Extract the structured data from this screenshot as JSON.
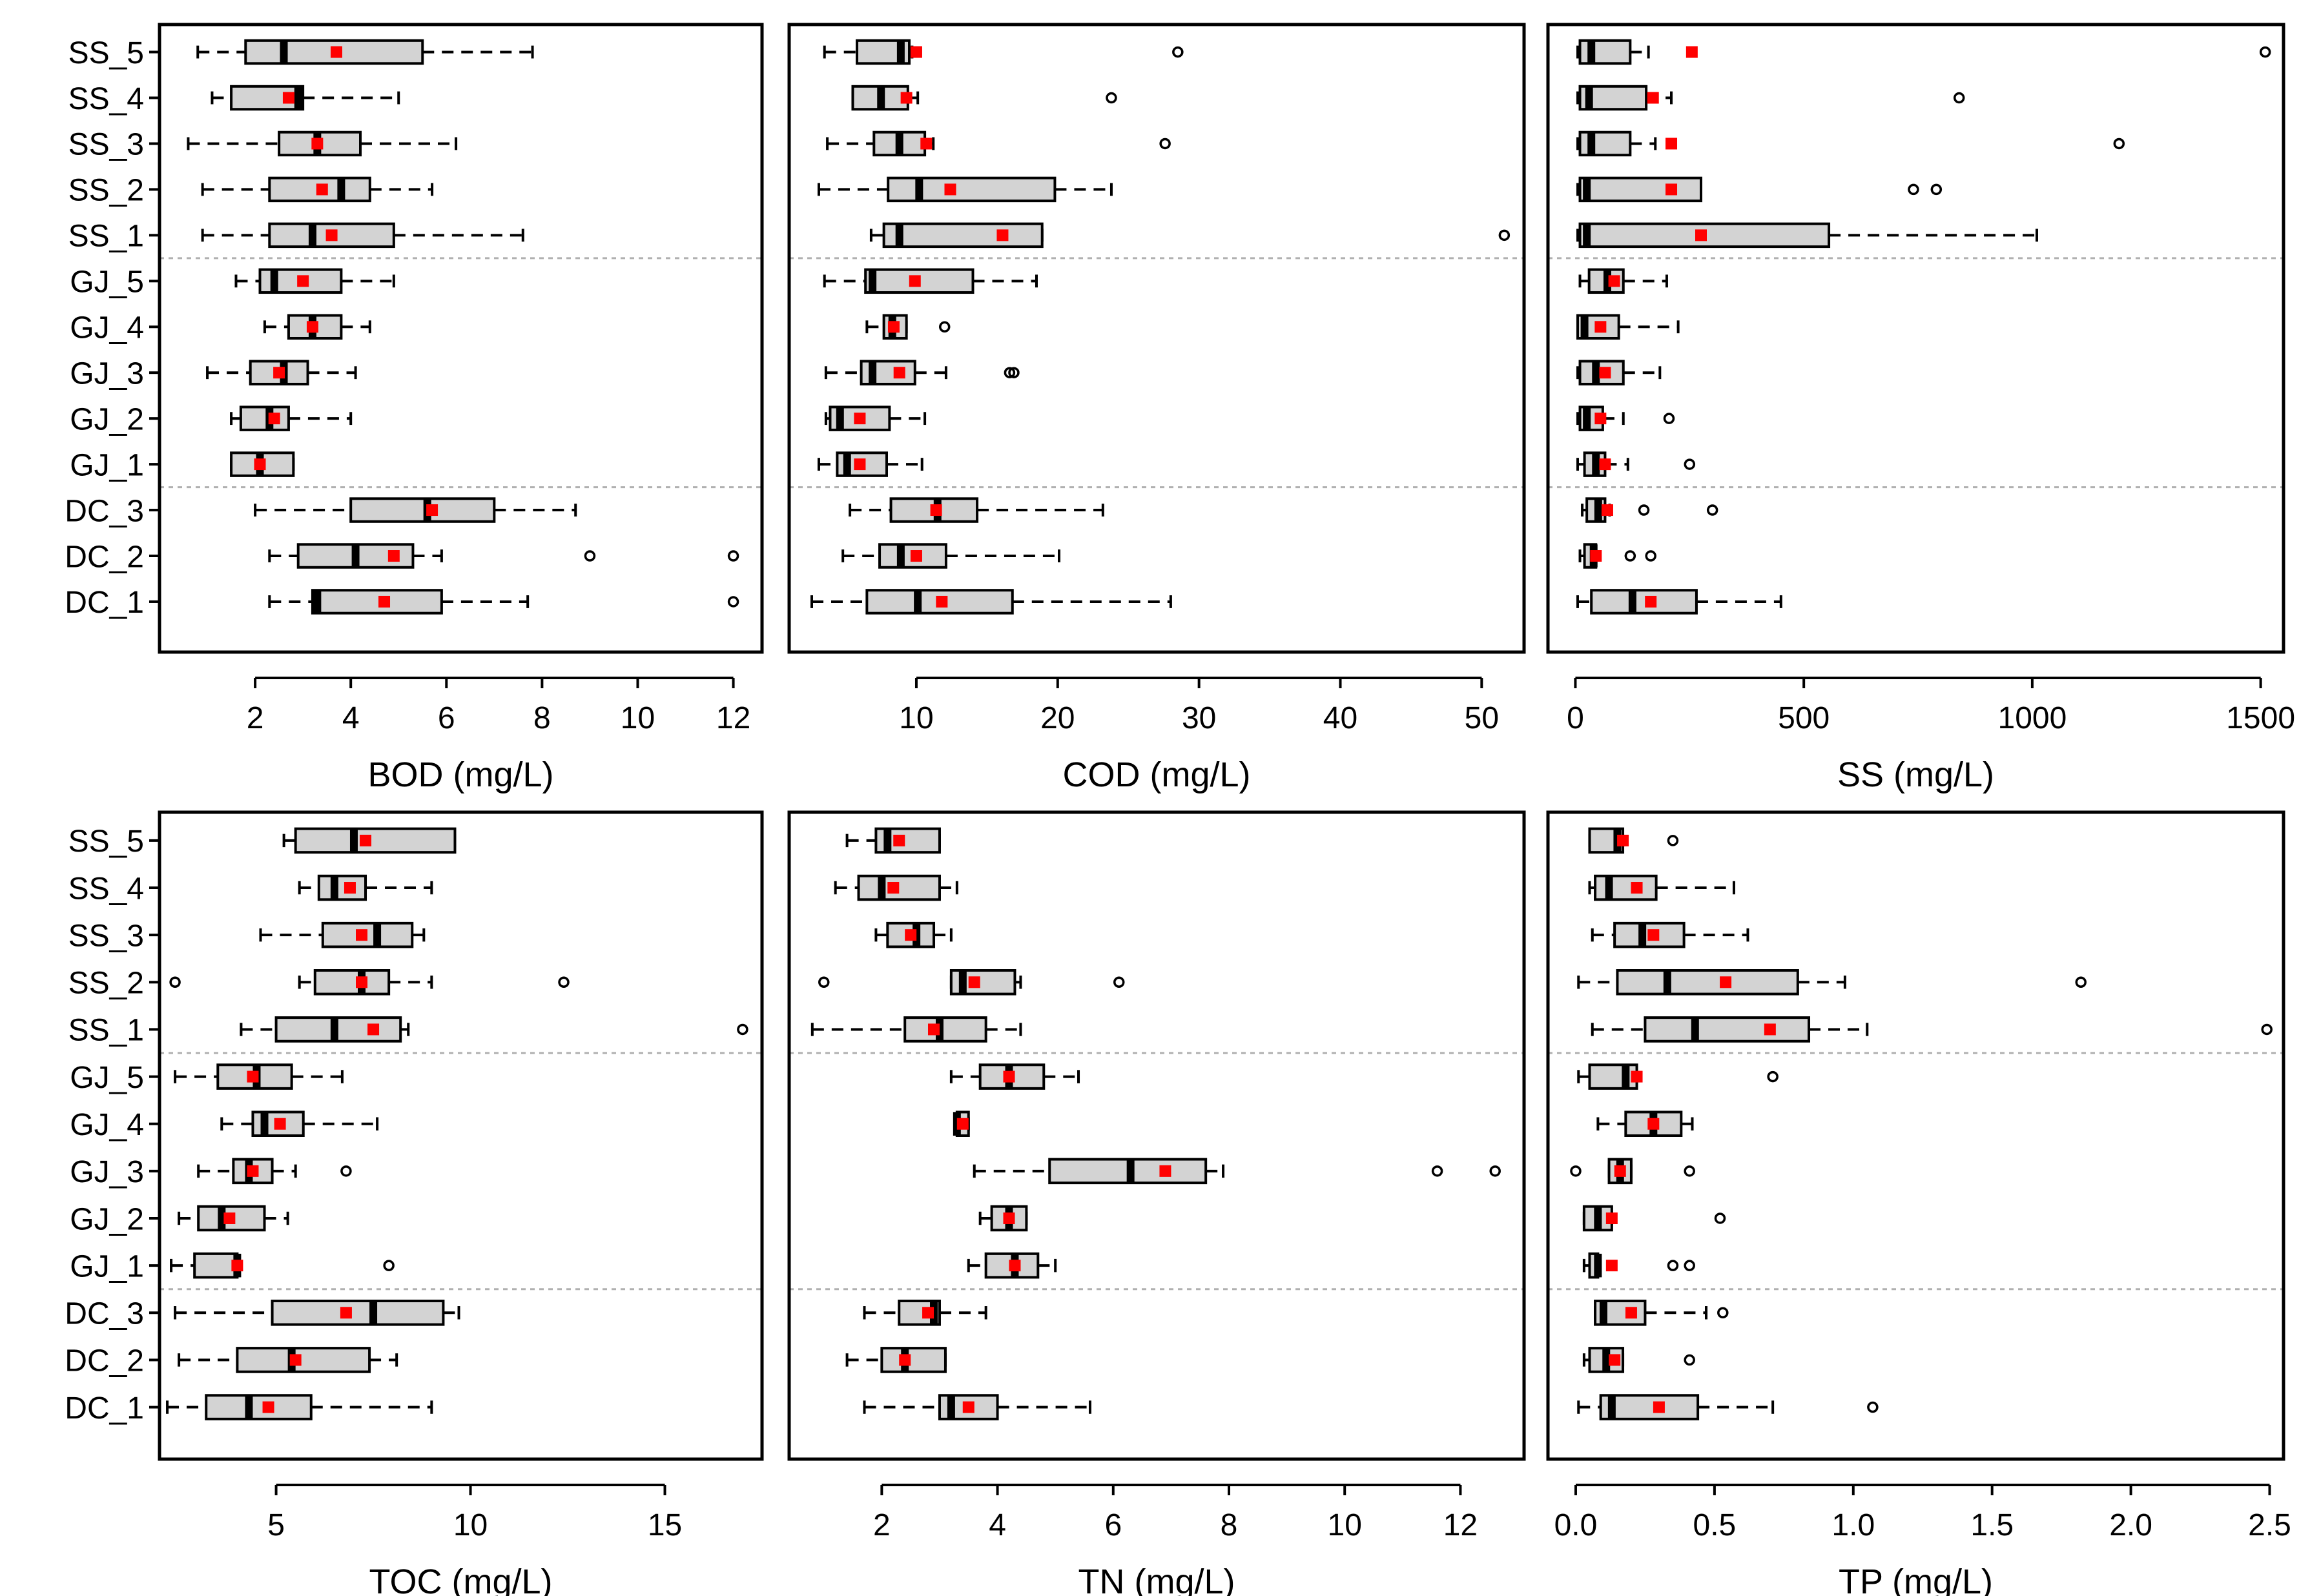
{
  "colors": {
    "box_fill": "#d3d3d3",
    "mean_marker": "#ff0000",
    "divider": "#b0b0b0",
    "ink": "#000000"
  },
  "group_labels": [
    "SS_5",
    "SS_4",
    "SS_3",
    "SS_2",
    "SS_1",
    "GJ_5",
    "GJ_4",
    "GJ_3",
    "GJ_2",
    "GJ_1",
    "DC_3",
    "DC_2",
    "DC_1"
  ],
  "chart_data": [
    {
      "type": "boxplot",
      "orientation": "horizontal",
      "xlabel": "BOD (mg/L)",
      "xlim": [
        0,
        12.6
      ],
      "xticks": [
        2,
        4,
        6,
        8,
        10,
        12
      ],
      "categories": [
        "SS_5",
        "SS_4",
        "SS_3",
        "SS_2",
        "SS_1",
        "GJ_5",
        "GJ_4",
        "GJ_3",
        "GJ_2",
        "GJ_1",
        "DC_3",
        "DC_2",
        "DC_1"
      ],
      "boxes": [
        {
          "whisker_low": 0.8,
          "q1": 1.8,
          "median": 2.6,
          "q3": 5.5,
          "whisker_high": 7.8,
          "mean": 3.7,
          "outliers": []
        },
        {
          "whisker_low": 1.1,
          "q1": 1.5,
          "median": 2.9,
          "q3": 3.0,
          "whisker_high": 5.0,
          "mean": 2.7,
          "outliers": []
        },
        {
          "whisker_low": 0.6,
          "q1": 2.5,
          "median": 3.3,
          "q3": 4.2,
          "whisker_high": 6.2,
          "mean": 3.3,
          "outliers": []
        },
        {
          "whisker_low": 0.9,
          "q1": 2.3,
          "median": 3.8,
          "q3": 4.4,
          "whisker_high": 5.7,
          "mean": 3.4,
          "outliers": []
        },
        {
          "whisker_low": 0.9,
          "q1": 2.3,
          "median": 3.2,
          "q3": 4.9,
          "whisker_high": 7.6,
          "mean": 3.6,
          "outliers": []
        },
        {
          "whisker_low": 1.6,
          "q1": 2.1,
          "median": 2.4,
          "q3": 3.8,
          "whisker_high": 4.9,
          "mean": 3.0,
          "outliers": []
        },
        {
          "whisker_low": 2.2,
          "q1": 2.7,
          "median": 3.2,
          "q3": 3.8,
          "whisker_high": 4.4,
          "mean": 3.2,
          "outliers": []
        },
        {
          "whisker_low": 1.0,
          "q1": 1.9,
          "median": 2.6,
          "q3": 3.1,
          "whisker_high": 4.1,
          "mean": 2.5,
          "outliers": []
        },
        {
          "whisker_low": 1.5,
          "q1": 1.7,
          "median": 2.3,
          "q3": 2.7,
          "whisker_high": 4.0,
          "mean": 2.4,
          "outliers": []
        },
        {
          "whisker_low": 1.5,
          "q1": 1.5,
          "median": 2.1,
          "q3": 2.8,
          "whisker_high": 2.8,
          "mean": 2.1,
          "outliers": []
        },
        {
          "whisker_low": 2.0,
          "q1": 4.0,
          "median": 5.6,
          "q3": 7.0,
          "whisker_high": 8.7,
          "mean": 5.7,
          "outliers": []
        },
        {
          "whisker_low": 2.3,
          "q1": 2.9,
          "median": 4.1,
          "q3": 5.3,
          "whisker_high": 5.9,
          "mean": 4.9,
          "outliers": [
            9.0,
            12.0
          ]
        },
        {
          "whisker_low": 2.3,
          "q1": 3.2,
          "median": 3.3,
          "q3": 5.9,
          "whisker_high": 7.7,
          "mean": 4.7,
          "outliers": [
            12.0
          ]
        }
      ]
    },
    {
      "type": "boxplot",
      "orientation": "horizontal",
      "xlabel": "COD (mg/L)",
      "xlim": [
        1,
        53
      ],
      "xticks": [
        10,
        20,
        30,
        40,
        50
      ],
      "categories": [
        "SS_5",
        "SS_4",
        "SS_3",
        "SS_2",
        "SS_1",
        "GJ_5",
        "GJ_4",
        "GJ_3",
        "GJ_2",
        "GJ_1",
        "DC_3",
        "DC_2",
        "DC_1"
      ],
      "boxes": [
        {
          "whisker_low": 3.5,
          "q1": 5.8,
          "median": 8.9,
          "q3": 9.5,
          "whisker_high": 9.7,
          "mean": 10.0,
          "outliers": [
            28.5
          ]
        },
        {
          "whisker_low": 5.5,
          "q1": 5.5,
          "median": 7.5,
          "q3": 9.4,
          "whisker_high": 10.1,
          "mean": 9.3,
          "outliers": [
            23.8
          ]
        },
        {
          "whisker_low": 3.7,
          "q1": 7.0,
          "median": 8.8,
          "q3": 10.6,
          "whisker_high": 11.2,
          "mean": 10.7,
          "outliers": [
            27.6
          ]
        },
        {
          "whisker_low": 3.1,
          "q1": 8.0,
          "median": 10.2,
          "q3": 19.8,
          "whisker_high": 23.8,
          "mean": 12.4,
          "outliers": []
        },
        {
          "whisker_low": 6.8,
          "q1": 7.7,
          "median": 8.8,
          "q3": 18.9,
          "whisker_high": 18.9,
          "mean": 16.1,
          "outliers": [
            51.6
          ]
        },
        {
          "whisker_low": 3.5,
          "q1": 6.4,
          "median": 6.9,
          "q3": 14.0,
          "whisker_high": 18.5,
          "mean": 9.9,
          "outliers": []
        },
        {
          "whisker_low": 6.5,
          "q1": 7.7,
          "median": 8.3,
          "q3": 9.3,
          "whisker_high": 9.3,
          "mean": 8.4,
          "outliers": [
            12.0
          ]
        },
        {
          "whisker_low": 3.6,
          "q1": 6.1,
          "median": 6.9,
          "q3": 9.9,
          "whisker_high": 12.1,
          "mean": 8.8,
          "outliers": [
            16.6,
            16.9
          ]
        },
        {
          "whisker_low": 3.6,
          "q1": 3.9,
          "median": 4.6,
          "q3": 8.1,
          "whisker_high": 10.6,
          "mean": 6.0,
          "outliers": []
        },
        {
          "whisker_low": 3.1,
          "q1": 4.4,
          "median": 5.1,
          "q3": 7.9,
          "whisker_high": 10.4,
          "mean": 6.0,
          "outliers": []
        },
        {
          "whisker_low": 5.3,
          "q1": 8.2,
          "median": 11.5,
          "q3": 14.3,
          "whisker_high": 23.2,
          "mean": 11.4,
          "outliers": []
        },
        {
          "whisker_low": 4.8,
          "q1": 7.4,
          "median": 8.9,
          "q3": 12.1,
          "whisker_high": 20.1,
          "mean": 10.0,
          "outliers": []
        },
        {
          "whisker_low": 2.6,
          "q1": 6.5,
          "median": 10.1,
          "q3": 16.8,
          "whisker_high": 28.0,
          "mean": 11.8,
          "outliers": []
        }
      ]
    },
    {
      "type": "boxplot",
      "orientation": "horizontal",
      "xlabel": "SS (mg/L)",
      "xlim": [
        -60,
        1550
      ],
      "xticks": [
        0,
        500,
        1000,
        1500
      ],
      "categories": [
        "SS_5",
        "SS_4",
        "SS_3",
        "SS_2",
        "SS_1",
        "GJ_5",
        "GJ_4",
        "GJ_3",
        "GJ_2",
        "GJ_1",
        "DC_3",
        "DC_2",
        "DC_1"
      ],
      "boxes": [
        {
          "whisker_low": 5,
          "q1": 10,
          "median": 35,
          "q3": 120,
          "whisker_high": 160,
          "mean": 255,
          "outliers": [
            1510
          ]
        },
        {
          "whisker_low": 5,
          "q1": 10,
          "median": 30,
          "q3": 155,
          "whisker_high": 210,
          "mean": 170,
          "outliers": [
            840
          ]
        },
        {
          "whisker_low": 5,
          "q1": 10,
          "median": 35,
          "q3": 120,
          "whisker_high": 175,
          "mean": 210,
          "outliers": [
            1190
          ]
        },
        {
          "whisker_low": 5,
          "q1": 10,
          "median": 25,
          "q3": 275,
          "whisker_high": 275,
          "mean": 210,
          "outliers": [
            740,
            790
          ]
        },
        {
          "whisker_low": 5,
          "q1": 10,
          "median": 25,
          "q3": 555,
          "whisker_high": 1010,
          "mean": 275,
          "outliers": []
        },
        {
          "whisker_low": 10,
          "q1": 30,
          "median": 70,
          "q3": 105,
          "whisker_high": 200,
          "mean": 85,
          "outliers": []
        },
        {
          "whisker_low": 5,
          "q1": 5,
          "median": 20,
          "q3": 95,
          "whisker_high": 225,
          "mean": 55,
          "outliers": []
        },
        {
          "whisker_low": 5,
          "q1": 10,
          "median": 45,
          "q3": 105,
          "whisker_high": 185,
          "mean": 65,
          "outliers": []
        },
        {
          "whisker_low": 5,
          "q1": 10,
          "median": 25,
          "q3": 60,
          "whisker_high": 105,
          "mean": 55,
          "outliers": [
            205
          ]
        },
        {
          "whisker_low": 5,
          "q1": 20,
          "median": 45,
          "q3": 65,
          "whisker_high": 115,
          "mean": 65,
          "outliers": [
            250
          ]
        },
        {
          "whisker_low": 15,
          "q1": 25,
          "median": 50,
          "q3": 65,
          "whisker_high": 75,
          "mean": 70,
          "outliers": [
            150,
            300
          ]
        },
        {
          "whisker_low": 10,
          "q1": 20,
          "median": 40,
          "q3": 45,
          "whisker_high": 45,
          "mean": 45,
          "outliers": [
            120,
            165
          ]
        },
        {
          "whisker_low": 5,
          "q1": 35,
          "median": 125,
          "q3": 265,
          "whisker_high": 450,
          "mean": 165,
          "outliers": []
        }
      ]
    },
    {
      "type": "boxplot",
      "orientation": "horizontal",
      "xlabel": "TOC (mg/L)",
      "xlim": [
        2,
        17.5
      ],
      "xticks": [
        5,
        10,
        15
      ],
      "categories": [
        "SS_5",
        "SS_4",
        "SS_3",
        "SS_2",
        "SS_1",
        "GJ_5",
        "GJ_4",
        "GJ_3",
        "GJ_2",
        "GJ_1",
        "DC_3",
        "DC_2",
        "DC_1"
      ],
      "boxes": [
        {
          "whisker_low": 5.2,
          "q1": 5.5,
          "median": 7.0,
          "q3": 9.6,
          "whisker_high": 9.6,
          "mean": 7.3,
          "outliers": []
        },
        {
          "whisker_low": 5.6,
          "q1": 6.1,
          "median": 6.5,
          "q3": 7.3,
          "whisker_high": 9.0,
          "mean": 6.9,
          "outliers": []
        },
        {
          "whisker_low": 4.6,
          "q1": 6.2,
          "median": 7.6,
          "q3": 8.5,
          "whisker_high": 8.8,
          "mean": 7.2,
          "outliers": []
        },
        {
          "whisker_low": 5.6,
          "q1": 6.0,
          "median": 7.2,
          "q3": 7.9,
          "whisker_high": 9.0,
          "mean": 7.2,
          "outliers": [
            2.4,
            12.4
          ]
        },
        {
          "whisker_low": 4.1,
          "q1": 5.0,
          "median": 6.5,
          "q3": 8.2,
          "whisker_high": 8.4,
          "mean": 7.5,
          "outliers": [
            17.0
          ]
        },
        {
          "whisker_low": 2.4,
          "q1": 3.5,
          "median": 4.5,
          "q3": 5.4,
          "whisker_high": 6.7,
          "mean": 4.4,
          "outliers": []
        },
        {
          "whisker_low": 3.6,
          "q1": 4.4,
          "median": 4.7,
          "q3": 5.7,
          "whisker_high": 7.6,
          "mean": 5.1,
          "outliers": []
        },
        {
          "whisker_low": 3.0,
          "q1": 3.9,
          "median": 4.3,
          "q3": 4.9,
          "whisker_high": 5.5,
          "mean": 4.4,
          "outliers": [
            6.8
          ]
        },
        {
          "whisker_low": 2.5,
          "q1": 3.0,
          "median": 3.6,
          "q3": 4.7,
          "whisker_high": 5.3,
          "mean": 3.8,
          "outliers": []
        },
        {
          "whisker_low": 2.3,
          "q1": 2.9,
          "median": 4.0,
          "q3": 4.0,
          "whisker_high": 4.0,
          "mean": 4.0,
          "outliers": [
            7.9
          ]
        },
        {
          "whisker_low": 2.4,
          "q1": 4.9,
          "median": 7.5,
          "q3": 9.3,
          "whisker_high": 9.7,
          "mean": 6.8,
          "outliers": []
        },
        {
          "whisker_low": 2.5,
          "q1": 4.0,
          "median": 5.4,
          "q3": 7.4,
          "whisker_high": 8.1,
          "mean": 5.5,
          "outliers": []
        },
        {
          "whisker_low": 2.2,
          "q1": 3.2,
          "median": 4.3,
          "q3": 5.9,
          "whisker_high": 9.0,
          "mean": 4.8,
          "outliers": []
        }
      ]
    },
    {
      "type": "boxplot",
      "orientation": "horizontal",
      "xlabel": "TN (mg/L)",
      "xlim": [
        0.4,
        13.1
      ],
      "xticks": [
        2,
        4,
        6,
        8,
        10,
        12
      ],
      "categories": [
        "SS_5",
        "SS_4",
        "SS_3",
        "SS_2",
        "SS_1",
        "GJ_5",
        "GJ_4",
        "GJ_3",
        "GJ_2",
        "GJ_1",
        "DC_3",
        "DC_2",
        "DC_1"
      ],
      "boxes": [
        {
          "whisker_low": 1.4,
          "q1": 1.9,
          "median": 2.1,
          "q3": 3.0,
          "whisker_high": 3.0,
          "mean": 2.3,
          "outliers": []
        },
        {
          "whisker_low": 1.2,
          "q1": 1.6,
          "median": 2.0,
          "q3": 3.0,
          "whisker_high": 3.3,
          "mean": 2.2,
          "outliers": []
        },
        {
          "whisker_low": 1.9,
          "q1": 2.1,
          "median": 2.6,
          "q3": 2.9,
          "whisker_high": 3.2,
          "mean": 2.5,
          "outliers": []
        },
        {
          "whisker_low": 3.2,
          "q1": 3.2,
          "median": 3.4,
          "q3": 4.3,
          "whisker_high": 4.4,
          "mean": 3.6,
          "outliers": [
            1.0,
            6.1
          ]
        },
        {
          "whisker_low": 0.8,
          "q1": 2.4,
          "median": 3.0,
          "q3": 3.8,
          "whisker_high": 4.4,
          "mean": 2.9,
          "outliers": []
        },
        {
          "whisker_low": 3.2,
          "q1": 3.7,
          "median": 4.2,
          "q3": 4.8,
          "whisker_high": 5.4,
          "mean": 4.2,
          "outliers": []
        },
        {
          "whisker_low": 3.3,
          "q1": 3.3,
          "median": 3.3,
          "q3": 3.5,
          "whisker_high": 3.5,
          "mean": 3.4,
          "outliers": []
        },
        {
          "whisker_low": 3.6,
          "q1": 4.9,
          "median": 6.3,
          "q3": 7.6,
          "whisker_high": 7.9,
          "mean": 6.9,
          "outliers": [
            11.6,
            12.6
          ]
        },
        {
          "whisker_low": 3.7,
          "q1": 3.9,
          "median": 4.2,
          "q3": 4.5,
          "whisker_high": 4.5,
          "mean": 4.2,
          "outliers": []
        },
        {
          "whisker_low": 3.5,
          "q1": 3.8,
          "median": 4.3,
          "q3": 4.7,
          "whisker_high": 5.0,
          "mean": 4.3,
          "outliers": []
        },
        {
          "whisker_low": 1.7,
          "q1": 2.3,
          "median": 2.9,
          "q3": 3.0,
          "whisker_high": 3.8,
          "mean": 2.8,
          "outliers": []
        },
        {
          "whisker_low": 1.4,
          "q1": 2.0,
          "median": 2.4,
          "q3": 3.1,
          "whisker_high": 3.1,
          "mean": 2.4,
          "outliers": []
        },
        {
          "whisker_low": 1.7,
          "q1": 3.0,
          "median": 3.2,
          "q3": 4.0,
          "whisker_high": 5.6,
          "mean": 3.5,
          "outliers": []
        }
      ]
    },
    {
      "type": "boxplot",
      "orientation": "horizontal",
      "xlabel": "TP (mg/L)",
      "xlim": [
        -0.1,
        2.55
      ],
      "xticks": [
        0.0,
        0.5,
        1.0,
        1.5,
        2.0,
        2.5
      ],
      "tick_labels": [
        "0.0",
        "0.5",
        "1.0",
        "1.5",
        "2.0",
        "2.5"
      ],
      "categories": [
        "SS_5",
        "SS_4",
        "SS_3",
        "SS_2",
        "SS_1",
        "GJ_5",
        "GJ_4",
        "GJ_3",
        "GJ_2",
        "GJ_1",
        "DC_3",
        "DC_2",
        "DC_1"
      ],
      "boxes": [
        {
          "whisker_low": 0.05,
          "q1": 0.05,
          "median": 0.15,
          "q3": 0.17,
          "whisker_high": 0.17,
          "mean": 0.17,
          "outliers": [
            0.35
          ]
        },
        {
          "whisker_low": 0.05,
          "q1": 0.07,
          "median": 0.12,
          "q3": 0.29,
          "whisker_high": 0.57,
          "mean": 0.22,
          "outliers": []
        },
        {
          "whisker_low": 0.06,
          "q1": 0.14,
          "median": 0.24,
          "q3": 0.39,
          "whisker_high": 0.62,
          "mean": 0.28,
          "outliers": []
        },
        {
          "whisker_low": 0.01,
          "q1": 0.15,
          "median": 0.33,
          "q3": 0.8,
          "whisker_high": 0.97,
          "mean": 0.54,
          "outliers": [
            1.82
          ]
        },
        {
          "whisker_low": 0.06,
          "q1": 0.25,
          "median": 0.43,
          "q3": 0.84,
          "whisker_high": 1.05,
          "mean": 0.7,
          "outliers": [
            2.49
          ]
        },
        {
          "whisker_low": 0.01,
          "q1": 0.05,
          "median": 0.18,
          "q3": 0.22,
          "whisker_high": 0.22,
          "mean": 0.22,
          "outliers": [
            0.71
          ]
        },
        {
          "whisker_low": 0.08,
          "q1": 0.18,
          "median": 0.28,
          "q3": 0.38,
          "whisker_high": 0.42,
          "mean": 0.28,
          "outliers": []
        },
        {
          "whisker_low": 0.12,
          "q1": 0.12,
          "median": 0.16,
          "q3": 0.2,
          "whisker_high": 0.2,
          "mean": 0.16,
          "outliers": [
            0.0,
            0.41
          ]
        },
        {
          "whisker_low": 0.03,
          "q1": 0.03,
          "median": 0.08,
          "q3": 0.13,
          "whisker_high": 0.13,
          "mean": 0.13,
          "outliers": [
            0.52
          ]
        },
        {
          "whisker_low": 0.03,
          "q1": 0.05,
          "median": 0.08,
          "q3": 0.08,
          "whisker_high": 0.08,
          "mean": 0.13,
          "outliers": [
            0.35,
            0.41
          ]
        },
        {
          "whisker_low": 0.07,
          "q1": 0.07,
          "median": 0.1,
          "q3": 0.25,
          "whisker_high": 0.47,
          "mean": 0.2,
          "outliers": [
            0.53
          ]
        },
        {
          "whisker_low": 0.03,
          "q1": 0.05,
          "median": 0.11,
          "q3": 0.17,
          "whisker_high": 0.17,
          "mean": 0.14,
          "outliers": [
            0.41
          ]
        },
        {
          "whisker_low": 0.01,
          "q1": 0.09,
          "median": 0.13,
          "q3": 0.44,
          "whisker_high": 0.71,
          "mean": 0.3,
          "outliers": [
            1.07
          ]
        }
      ]
    }
  ]
}
